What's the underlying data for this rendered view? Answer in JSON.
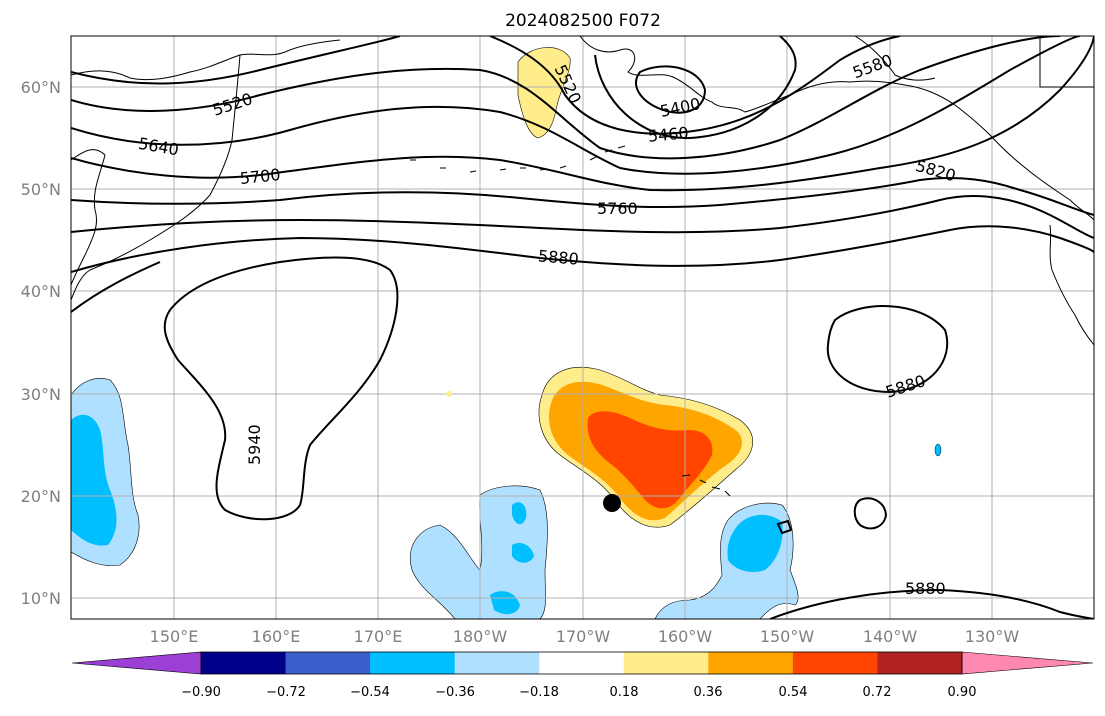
{
  "title": "2024082500 F072",
  "map": {
    "lat_labels": [
      "60°N",
      "50°N",
      "40°N",
      "30°N",
      "20°N",
      "10°N"
    ],
    "lon_labels": [
      "150°E",
      "160°E",
      "170°E",
      "180°W",
      "170°W",
      "160°W",
      "150°W",
      "140°W",
      "130°W"
    ],
    "contour_labels": [
      "5520",
      "5520",
      "5400",
      "5460",
      "5580",
      "5640",
      "5700",
      "5760",
      "5820",
      "5880",
      "5880",
      "5880",
      "5940"
    ],
    "colors": {
      "axis_text": "#808080",
      "contour": "#000000",
      "grid": "#b0b0b0"
    }
  },
  "colorbar": {
    "tick_labels": [
      "−0.90",
      "−0.72",
      "−0.54",
      "−0.36",
      "−0.18",
      "0.18",
      "0.36",
      "0.54",
      "0.72",
      "0.90"
    ],
    "colors": [
      "#9b3fd5",
      "#00008b",
      "#3a5fcd",
      "#00bfff",
      "#b0e0ff",
      "#ffffff",
      "#ffec8b",
      "#ffa500",
      "#ff4500",
      "#b22222",
      "#ff88b0"
    ]
  }
}
